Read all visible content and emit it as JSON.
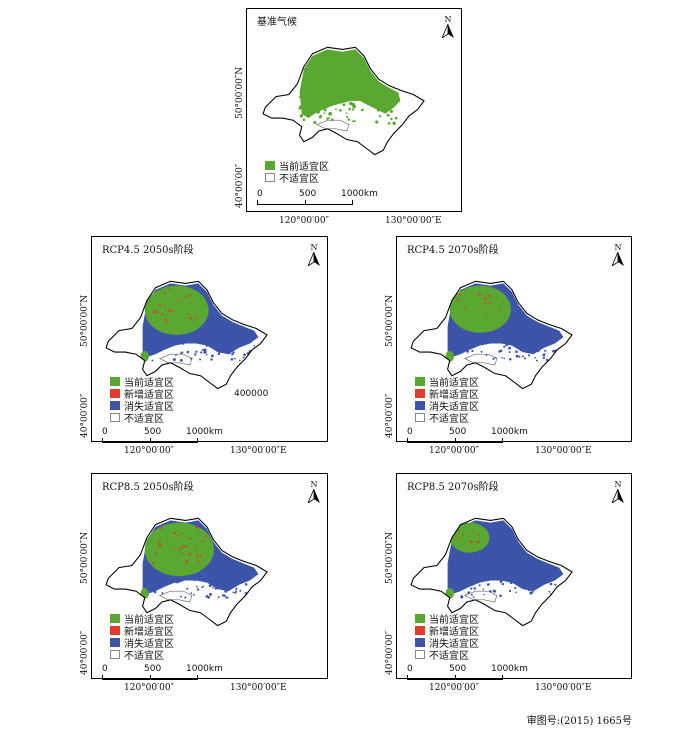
{
  "colors": {
    "current": "#5aa832",
    "new": "#e13c2c",
    "lost": "#3d55a8",
    "unsuitable": "#ffffff",
    "outline": "#000000"
  },
  "north_label": "N",
  "scale": {
    "zero": "0",
    "mid": "500",
    "end": "1000km"
  },
  "lat_labels": [
    "50°00′00″N",
    "40°00′00″"
  ],
  "lon_labels": [
    "120°00′00″",
    "130°00′00″E"
  ],
  "panels": [
    {
      "title": "基准气候",
      "legend": [
        "当前适宜区",
        "不适宜区"
      ],
      "extra": ""
    },
    {
      "title": "RCP4.5 2050s阶段",
      "legend": [
        "当前适宜区",
        "新增适宜区",
        "消失适宜区",
        "不适宜区"
      ],
      "extra": "400000"
    },
    {
      "title": "RCP4.5 2070s阶段",
      "legend": [
        "当前适宜区",
        "新增适宜区",
        "消失适宜区",
        "不适宜区"
      ],
      "extra": ""
    },
    {
      "title": "RCP8.5 2050s阶段",
      "legend": [
        "当前适宜区",
        "新增适宜区",
        "消失适宜区",
        "不适宜区"
      ],
      "extra": ""
    },
    {
      "title": "RCP8.5 2070s阶段",
      "legend": [
        "当前适宜区",
        "新增适宜区",
        "消失适宜区",
        "不适宜区"
      ],
      "extra": ""
    }
  ],
  "footer": "审图号:(2015) 1665号"
}
